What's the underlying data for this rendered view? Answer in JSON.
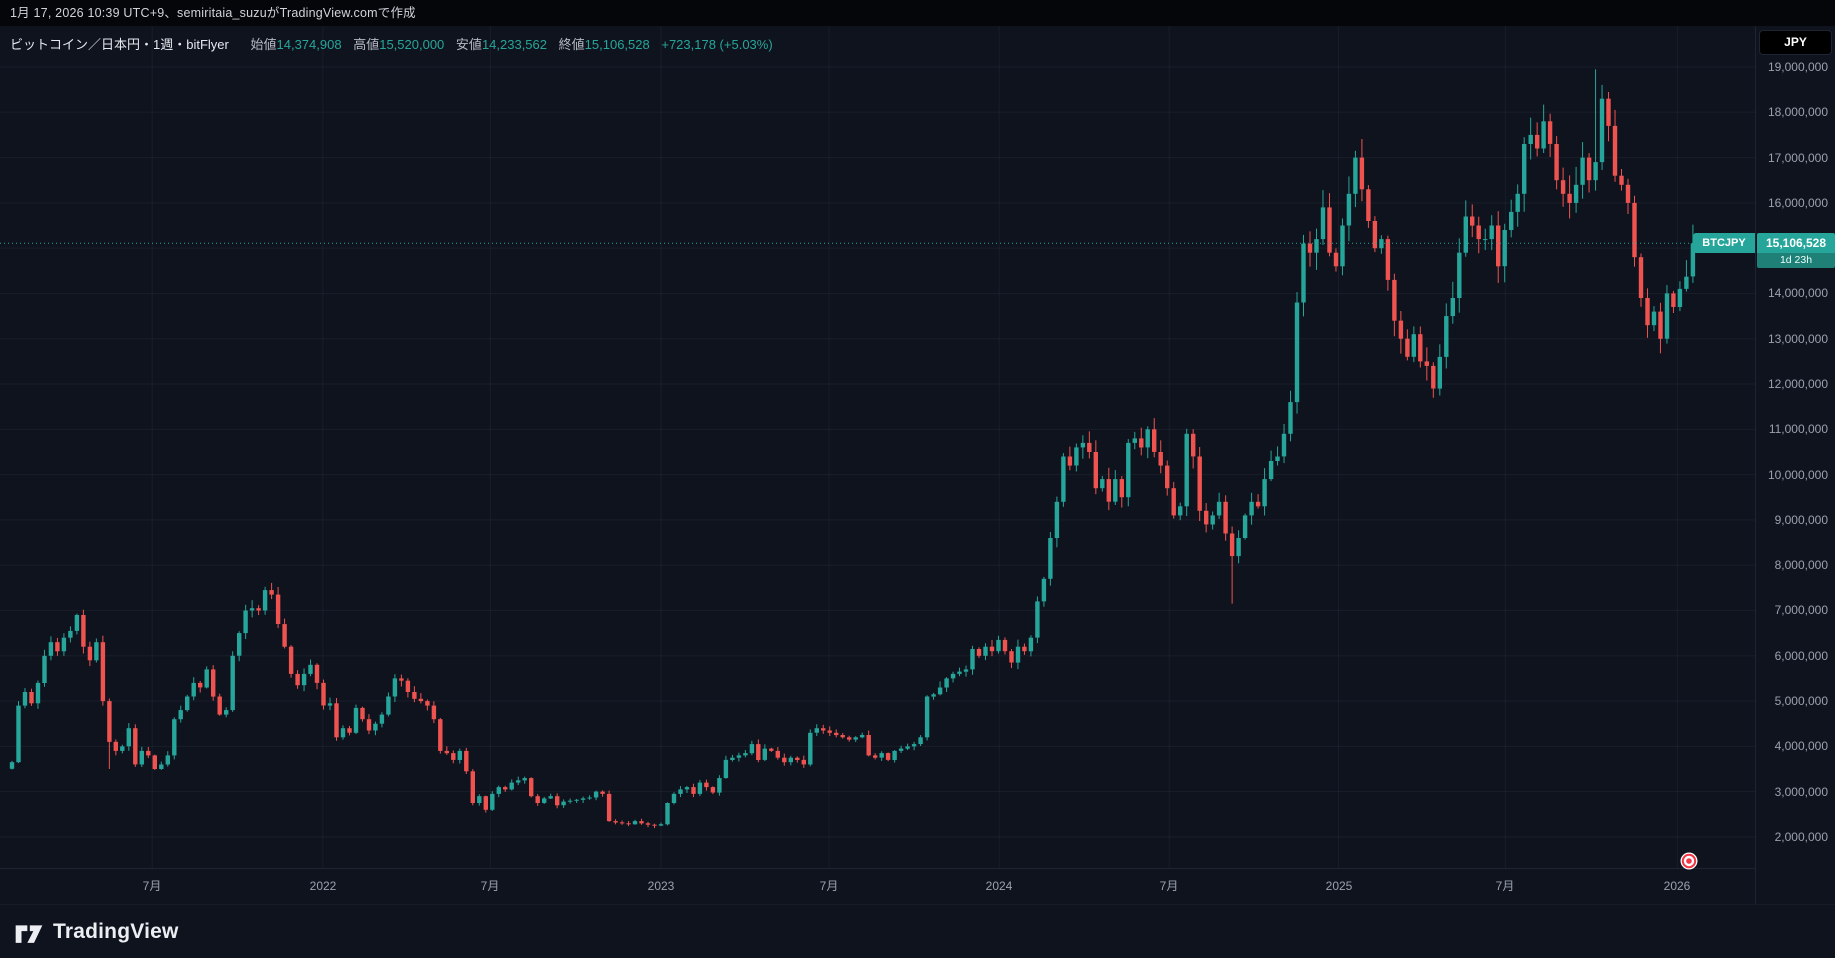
{
  "header": {
    "attribution": "1月 17, 2026 10:39 UTC+9、semiritaia_suzuがTradingView.comで作成"
  },
  "legend": {
    "title": "ビットコイン／日本円・1週・bitFlyer",
    "open_label": "始値",
    "open": "14,374,908",
    "high_label": "高値",
    "high": "15,520,000",
    "low_label": "安値",
    "low": "14,233,562",
    "close_label": "終値",
    "close": "15,106,528",
    "change": "+723,178 (+5.03%)"
  },
  "symbol_label": "BTCJPY",
  "price_axis": {
    "currency_button": "JPY",
    "current_price_label": "15,106,528",
    "countdown": "1d 23h"
  },
  "footer": {
    "brand": "TradingView"
  },
  "chart_data": {
    "type": "candlestick",
    "title": "ビットコイン／日本円・1週・bitFlyer",
    "symbol": "BTCJPY",
    "interval": "1週",
    "exchange": "bitFlyer",
    "currency": "JPY",
    "legend_position": "top-left",
    "grid": true,
    "colors": {
      "up": "#26a69a",
      "down": "#ef5350",
      "price_line": "#26a69a"
    },
    "y_axis": {
      "min_m": 2,
      "max_m": 19,
      "step_m": 1
    },
    "y_ticks": [
      {
        "label": "19,000,000",
        "value": 19
      },
      {
        "label": "18,000,000",
        "value": 18
      },
      {
        "label": "17,000,000",
        "value": 17
      },
      {
        "label": "16,000,000",
        "value": 16
      },
      {
        "label": "15,000,000",
        "value": 15
      },
      {
        "label": "14,000,000",
        "value": 14
      },
      {
        "label": "13,000,000",
        "value": 13
      },
      {
        "label": "12,000,000",
        "value": 12
      },
      {
        "label": "11,000,000",
        "value": 11
      },
      {
        "label": "10,000,000",
        "value": 10
      },
      {
        "label": "9,000,000",
        "value": 9
      },
      {
        "label": "8,000,000",
        "value": 8
      },
      {
        "label": "7,000,000",
        "value": 7
      },
      {
        "label": "6,000,000",
        "value": 6
      },
      {
        "label": "5,000,000",
        "value": 5
      },
      {
        "label": "4,000,000",
        "value": 4
      },
      {
        "label": "3,000,000",
        "value": 3
      },
      {
        "label": "2,000,000",
        "value": 2
      }
    ],
    "x_ticks": [
      {
        "label": "7月",
        "week": 21.6
      },
      {
        "label": "2022",
        "week": 47.9
      },
      {
        "label": "7月",
        "week": 73.7
      },
      {
        "label": "2023",
        "week": 100.0
      },
      {
        "label": "7月",
        "week": 125.9
      },
      {
        "label": "2024",
        "week": 152.1
      },
      {
        "label": "7月",
        "week": 178.3
      },
      {
        "label": "2025",
        "week": 204.4
      },
      {
        "label": "7月",
        "week": 230.1
      },
      {
        "label": "2026",
        "week": 256.6
      }
    ],
    "weekly_closes_m_jpy": [
      3.65,
      4.9,
      5.2,
      4.95,
      5.4,
      6.0,
      6.3,
      6.1,
      6.4,
      6.55,
      6.9,
      6.2,
      5.9,
      6.3,
      5.0,
      4.1,
      3.9,
      4.0,
      4.4,
      3.6,
      3.9,
      3.8,
      3.5,
      3.6,
      3.8,
      4.6,
      4.8,
      5.1,
      5.4,
      5.3,
      5.7,
      5.1,
      4.7,
      4.8,
      6.0,
      6.5,
      7.0,
      7.05,
      7.0,
      7.45,
      7.35,
      6.7,
      6.2,
      5.6,
      5.35,
      5.6,
      5.8,
      5.4,
      4.9,
      4.95,
      4.2,
      4.4,
      4.3,
      4.85,
      4.6,
      4.35,
      4.5,
      4.7,
      5.1,
      5.5,
      5.45,
      5.2,
      5.05,
      5.0,
      4.9,
      4.6,
      3.9,
      3.85,
      3.7,
      3.9,
      3.45,
      2.75,
      2.9,
      2.6,
      2.95,
      3.1,
      3.05,
      3.2,
      3.25,
      3.3,
      2.9,
      2.75,
      2.85,
      2.9,
      2.7,
      2.78,
      2.8,
      2.82,
      2.85,
      2.87,
      3.0,
      2.95,
      2.35,
      2.32,
      2.3,
      2.28,
      2.35,
      2.3,
      2.27,
      2.25,
      2.28,
      2.75,
      2.95,
      3.05,
      3.1,
      2.95,
      3.2,
      3.1,
      2.98,
      3.3,
      3.7,
      3.75,
      3.8,
      3.85,
      4.05,
      3.7,
      3.95,
      3.9,
      3.75,
      3.65,
      3.75,
      3.7,
      3.6,
      4.3,
      4.4,
      4.35,
      4.3,
      4.25,
      4.2,
      4.15,
      4.2,
      4.25,
      3.8,
      3.75,
      3.85,
      3.7,
      3.9,
      3.95,
      4.0,
      4.05,
      4.2,
      5.1,
      5.15,
      5.3,
      5.5,
      5.6,
      5.65,
      5.7,
      6.15,
      6.0,
      6.2,
      6.1,
      6.35,
      6.1,
      5.85,
      6.2,
      6.1,
      6.4,
      7.2,
      7.7,
      8.6,
      9.4,
      10.4,
      10.2,
      10.6,
      10.7,
      10.5,
      9.7,
      9.9,
      9.4,
      9.9,
      9.5,
      10.7,
      10.8,
      10.6,
      11.0,
      10.5,
      10.2,
      9.7,
      9.1,
      9.3,
      10.9,
      10.4,
      9.2,
      8.9,
      9.1,
      9.4,
      8.7,
      8.2,
      8.6,
      9.1,
      9.4,
      9.3,
      9.9,
      10.3,
      10.4,
      10.9,
      11.6,
      13.8,
      15.1,
      14.9,
      15.2,
      15.9,
      14.9,
      14.6,
      15.5,
      16.2,
      17.0,
      16.3,
      15.6,
      15.0,
      15.2,
      14.3,
      13.4,
      13.0,
      12.6,
      13.1,
      12.5,
      12.4,
      11.9,
      12.6,
      13.5,
      13.9,
      14.9,
      15.7,
      15.5,
      15.2,
      15.2,
      15.5,
      14.6,
      15.4,
      15.8,
      16.2,
      17.3,
      17.5,
      17.2,
      17.8,
      17.3,
      16.5,
      16.2,
      16.0,
      16.4,
      17.0,
      16.5,
      16.9,
      18.3,
      17.7,
      16.6,
      16.4,
      16.0,
      14.8,
      13.9,
      13.3,
      13.6,
      13.0,
      14.0,
      13.7,
      14.1,
      14.37,
      15.106528
    ],
    "wick_overrides": {
      "15": {
        "low": 3.5
      },
      "188": {
        "low": 7.15
      },
      "207": {
        "high": 17.15
      },
      "244": {
        "high": 18.95
      }
    },
    "last_candle": {
      "open": 14374908,
      "high": 15520000,
      "low": 14233562,
      "close": 15106528
    },
    "current_price": 15106528
  }
}
